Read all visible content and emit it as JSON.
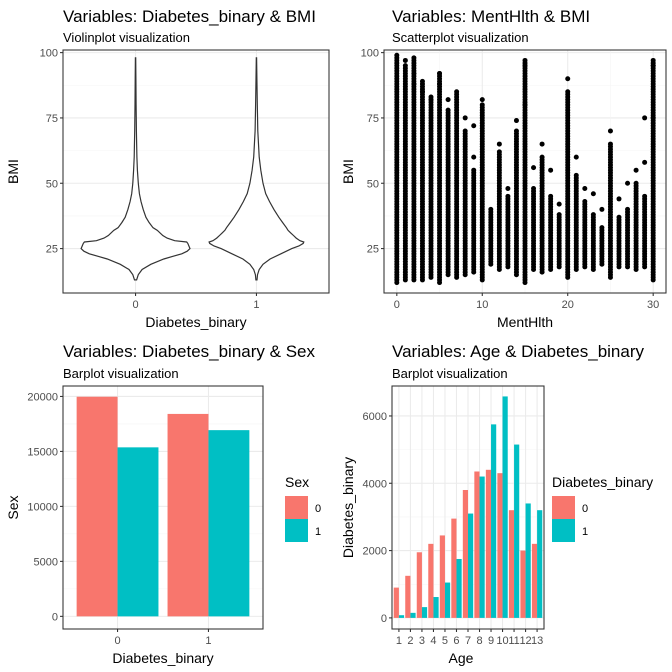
{
  "colors": {
    "series0": "#F8766D",
    "series1": "#00BFC4",
    "violin": "#333333",
    "point": "#000000"
  },
  "chart_data": [
    {
      "type": "violin",
      "title": "Variables: Diabetes_binary & BMI",
      "subtitle": "Violinplot visualization",
      "xlabel": "Diabetes_binary",
      "ylabel": "BMI",
      "categories": [
        "0",
        "1"
      ],
      "ylim": [
        8,
        101
      ],
      "yticks": [
        25,
        50,
        75,
        100
      ],
      "grid": true,
      "violins": [
        {
          "category": "0",
          "profile": [
            [
              13,
              0.02
            ],
            [
              15,
              0.05
            ],
            [
              17,
              0.12
            ],
            [
              19,
              0.28
            ],
            [
              21,
              0.52
            ],
            [
              22,
              0.68
            ],
            [
              23,
              0.85
            ],
            [
              24,
              0.95
            ],
            [
              25,
              1.0
            ],
            [
              26,
              0.98
            ],
            [
              27,
              0.96
            ],
            [
              27.5,
              0.94
            ],
            [
              28,
              0.72
            ],
            [
              29,
              0.58
            ],
            [
              30,
              0.5
            ],
            [
              32,
              0.4
            ],
            [
              33,
              0.32
            ],
            [
              35,
              0.25
            ],
            [
              37,
              0.19
            ],
            [
              40,
              0.14
            ],
            [
              43,
              0.1
            ],
            [
              46,
              0.07
            ],
            [
              50,
              0.05
            ],
            [
              55,
              0.035
            ],
            [
              60,
              0.025
            ],
            [
              70,
              0.015
            ],
            [
              80,
              0.01
            ],
            [
              90,
              0.006
            ],
            [
              98,
              0.003
            ]
          ]
        },
        {
          "category": "1",
          "profile": [
            [
              13,
              0.01
            ],
            [
              15,
              0.02
            ],
            [
              17,
              0.05
            ],
            [
              19,
              0.12
            ],
            [
              21,
              0.25
            ],
            [
              23,
              0.45
            ],
            [
              25,
              0.65
            ],
            [
              26,
              0.78
            ],
            [
              27,
              0.86
            ],
            [
              27.5,
              0.87
            ],
            [
              28,
              0.8
            ],
            [
              29,
              0.73
            ],
            [
              30,
              0.68
            ],
            [
              31,
              0.63
            ],
            [
              32,
              0.58
            ],
            [
              33,
              0.55
            ],
            [
              35,
              0.48
            ],
            [
              37,
              0.41
            ],
            [
              40,
              0.32
            ],
            [
              43,
              0.24
            ],
            [
              46,
              0.17
            ],
            [
              50,
              0.12
            ],
            [
              55,
              0.08
            ],
            [
              60,
              0.05
            ],
            [
              70,
              0.025
            ],
            [
              80,
              0.015
            ],
            [
              90,
              0.008
            ],
            [
              98,
              0.003
            ]
          ]
        }
      ]
    },
    {
      "type": "scatter",
      "title": "Variables: MentHlth & BMI",
      "subtitle": "Scatterplot visualization",
      "xlabel": "MentHlth",
      "ylabel": "BMI",
      "xlim": [
        -1.5,
        31.5
      ],
      "ylim": [
        8,
        101
      ],
      "xticks": [
        0,
        10,
        20,
        30
      ],
      "yticks": [
        25,
        50,
        75,
        100
      ],
      "grid": true,
      "columns": [
        {
          "x": 0,
          "ymin": 12,
          "ymax": 98
        },
        {
          "x": 1,
          "ymin": 13,
          "ymax": 95
        },
        {
          "x": 2,
          "ymin": 13,
          "ymax": 98
        },
        {
          "x": 3,
          "ymin": 13,
          "ymax": 89
        },
        {
          "x": 4,
          "ymin": 14,
          "ymax": 83
        },
        {
          "x": 5,
          "ymin": 12,
          "ymax": 92
        },
        {
          "x": 6,
          "ymin": 15,
          "ymax": 78
        },
        {
          "x": 7,
          "ymin": 14,
          "ymax": 84
        },
        {
          "x": 8,
          "ymin": 15,
          "ymax": 70
        },
        {
          "x": 9,
          "ymin": 16,
          "ymax": 55
        },
        {
          "x": 10,
          "ymin": 13,
          "ymax": 80
        },
        {
          "x": 11,
          "ymin": 19,
          "ymax": 40
        },
        {
          "x": 12,
          "ymin": 17,
          "ymax": 62
        },
        {
          "x": 13,
          "ymin": 18,
          "ymax": 45
        },
        {
          "x": 14,
          "ymin": 15,
          "ymax": 70
        },
        {
          "x": 15,
          "ymin": 12,
          "ymax": 97
        },
        {
          "x": 16,
          "ymin": 17,
          "ymax": 48
        },
        {
          "x": 17,
          "ymin": 16,
          "ymax": 60
        },
        {
          "x": 18,
          "ymin": 17,
          "ymax": 45
        },
        {
          "x": 19,
          "ymin": 18,
          "ymax": 38
        },
        {
          "x": 20,
          "ymin": 14,
          "ymax": 85
        },
        {
          "x": 21,
          "ymin": 17,
          "ymax": 53
        },
        {
          "x": 22,
          "ymin": 18,
          "ymax": 43
        },
        {
          "x": 23,
          "ymin": 17,
          "ymax": 38
        },
        {
          "x": 24,
          "ymin": 19,
          "ymax": 33
        },
        {
          "x": 25,
          "ymin": 14,
          "ymax": 65
        },
        {
          "x": 26,
          "ymin": 18,
          "ymax": 37
        },
        {
          "x": 27,
          "ymin": 18,
          "ymax": 40
        },
        {
          "x": 28,
          "ymin": 17,
          "ymax": 50
        },
        {
          "x": 29,
          "ymin": 18,
          "ymax": 45
        },
        {
          "x": 30,
          "ymin": 13,
          "ymax": 97
        }
      ],
      "extra_points": [
        [
          0,
          99
        ],
        [
          1,
          97
        ],
        [
          2,
          92
        ],
        [
          2,
          88
        ],
        [
          3,
          85
        ],
        [
          4,
          82
        ],
        [
          5,
          88
        ],
        [
          5,
          92
        ],
        [
          6,
          82
        ],
        [
          7,
          85
        ],
        [
          8,
          75
        ],
        [
          9,
          60
        ],
        [
          9,
          72
        ],
        [
          10,
          82
        ],
        [
          12,
          65
        ],
        [
          13,
          48
        ],
        [
          14,
          74
        ],
        [
          15,
          95
        ],
        [
          15,
          80
        ],
        [
          16,
          56
        ],
        [
          17,
          65
        ],
        [
          18,
          55
        ],
        [
          19,
          42
        ],
        [
          20,
          90
        ],
        [
          21,
          60
        ],
        [
          22,
          48
        ],
        [
          23,
          46
        ],
        [
          24,
          40
        ],
        [
          25,
          70
        ],
        [
          26,
          44
        ],
        [
          27,
          50
        ],
        [
          28,
          55
        ],
        [
          29,
          58
        ],
        [
          30,
          95
        ],
        [
          30,
          75
        ],
        [
          29,
          75
        ]
      ]
    },
    {
      "type": "bar",
      "title": "Variables: Diabetes_binary & Sex",
      "subtitle": "Barplot visualization",
      "xlabel": "Diabetes_binary",
      "ylabel": "Sex",
      "categories": [
        "0",
        "1"
      ],
      "ylim": [
        -1150,
        20950
      ],
      "yticks": [
        0,
        5000,
        10000,
        15000,
        20000
      ],
      "grid": true,
      "legend": {
        "title": "Sex",
        "placement": "right"
      },
      "series": [
        {
          "name": "0",
          "values": [
            19975,
            18411
          ]
        },
        {
          "name": "1",
          "values": [
            15371,
            16935
          ]
        }
      ]
    },
    {
      "type": "bar",
      "title": "Variables: Age & Diabetes_binary",
      "subtitle": "Barplot visualization",
      "xlabel": "Age",
      "ylabel": "Diabetes_binary",
      "categories": [
        "1",
        "2",
        "3",
        "4",
        "5",
        "6",
        "7",
        "8",
        "9",
        "10",
        "11",
        "12",
        "13"
      ],
      "ylim": [
        -330,
        6890
      ],
      "yticks": [
        0,
        2000,
        4000,
        6000
      ],
      "grid": true,
      "legend": {
        "title": "Diabetes_binary",
        "placement": "right"
      },
      "series": [
        {
          "name": "0",
          "values": [
            900,
            1250,
            1950,
            2200,
            2450,
            2950,
            3800,
            4350,
            4400,
            4300,
            3200,
            2000,
            2200
          ]
        },
        {
          "name": "1",
          "values": [
            80,
            150,
            320,
            620,
            1050,
            1750,
            3100,
            4200,
            5750,
            6580,
            5150,
            3400,
            3200
          ]
        }
      ]
    }
  ]
}
